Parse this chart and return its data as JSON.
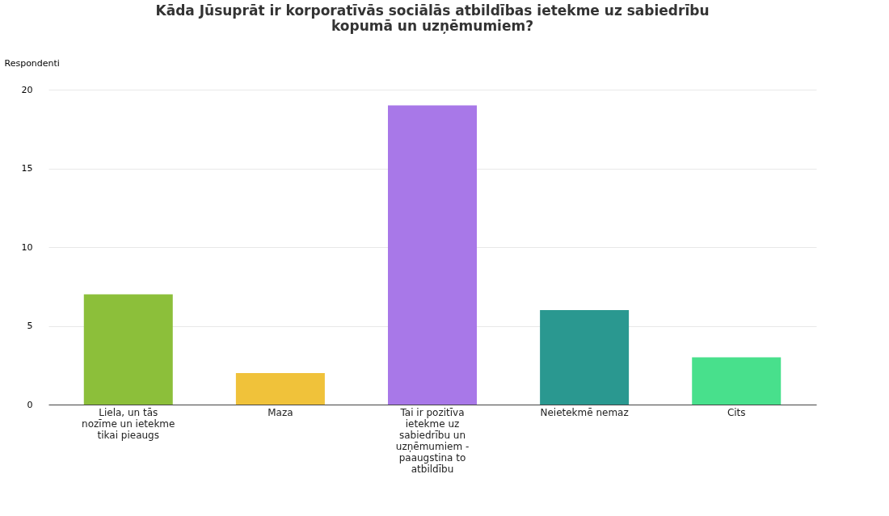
{
  "chart_data": {
    "type": "bar",
    "title": "Kāda Jūsuprāt ir korporatīvās sociālās atbildības ietekme uz sabiedrību kopumā un uzņēmumiem?",
    "ylabel": "Respondenti",
    "categories": [
      "Liela, un tās nozīme un ietekme tikai pieaugs",
      "Maza",
      "Tai ir pozitīva ietekme uz sabiedrību un uzņēmumiem - paaugstina to atbildību",
      "Neietekmē nemaz",
      "Cits"
    ],
    "values": [
      7,
      2,
      19,
      6,
      3
    ],
    "colors": [
      "#8cbf3a",
      "#f0c23a",
      "#a878e8",
      "#2a9890",
      "#48e08c"
    ],
    "ylim": [
      0,
      20
    ],
    "yticks": [
      0,
      5,
      10,
      15,
      20
    ],
    "grid": "y"
  }
}
